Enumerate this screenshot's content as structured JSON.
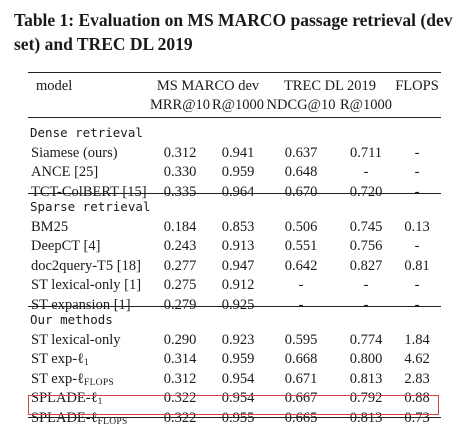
{
  "caption": "Table 1: Evaluation on MS MARCO passage retrieval (dev set) and TREC DL 2019",
  "table": {
    "model_header": "model",
    "group_headers": [
      "MS MARCO dev",
      "TREC DL 2019",
      "FLOPS"
    ],
    "metric_headers": [
      "MRR@10",
      "R@1000",
      "NDCG@10",
      "R@1000"
    ],
    "sections": [
      {
        "title": "Dense retrieval",
        "rows": [
          {
            "model": "Siamese (ours)",
            "values": [
              "0.312",
              "0.941",
              "0.637",
              "0.711",
              "-"
            ]
          },
          {
            "model": "ANCE [25]",
            "values": [
              "0.330",
              "0.959",
              "0.648",
              "-",
              "-"
            ]
          },
          {
            "model": "TCT-ColBERT [15]",
            "values": [
              "0.335",
              "0.964",
              "0.670",
              "0.720",
              "-"
            ]
          }
        ]
      },
      {
        "title": "Sparse retrieval",
        "rows": [
          {
            "model": "BM25",
            "values": [
              "0.184",
              "0.853",
              "0.506",
              "0.745",
              "0.13"
            ]
          },
          {
            "model": "DeepCT [4]",
            "values": [
              "0.243",
              "0.913",
              "0.551",
              "0.756",
              "-"
            ]
          },
          {
            "model": "doc2query-T5 [18]",
            "values": [
              "0.277",
              "0.947",
              "0.642",
              "0.827",
              "0.81"
            ]
          },
          {
            "model": "ST lexical-only [1]",
            "values": [
              "0.275",
              "0.912",
              "-",
              "-",
              "-"
            ]
          },
          {
            "model": "ST expansion [1]",
            "values": [
              "0.279",
              "0.925",
              "-",
              "-",
              "-"
            ]
          }
        ]
      },
      {
        "title": "Our methods",
        "rows": [
          {
            "model": "ST lexical-only",
            "sub": "",
            "values": [
              "0.290",
              "0.923",
              "0.595",
              "0.774",
              "1.84"
            ]
          },
          {
            "model": "ST exp-ℓ",
            "sub": "1",
            "values": [
              "0.314",
              "0.959",
              "0.668",
              "0.800",
              "4.62"
            ]
          },
          {
            "model": "ST exp-ℓ",
            "sub": "FLOPS",
            "values": [
              "0.312",
              "0.954",
              "0.671",
              "0.813",
              "2.83"
            ]
          },
          {
            "model": "SPLADE-ℓ",
            "sub": "1",
            "values": [
              "0.322",
              "0.954",
              "0.667",
              "0.792",
              "0.88"
            ]
          },
          {
            "model": "SPLADE-ℓ",
            "sub": "FLOPS",
            "values": [
              "0.322",
              "0.955",
              "0.665",
              "0.813",
              "0.73"
            ],
            "highlighted": true
          }
        ]
      }
    ]
  },
  "colors": {
    "text": "#1a1a1a",
    "highlight_border": "#d8413f"
  }
}
